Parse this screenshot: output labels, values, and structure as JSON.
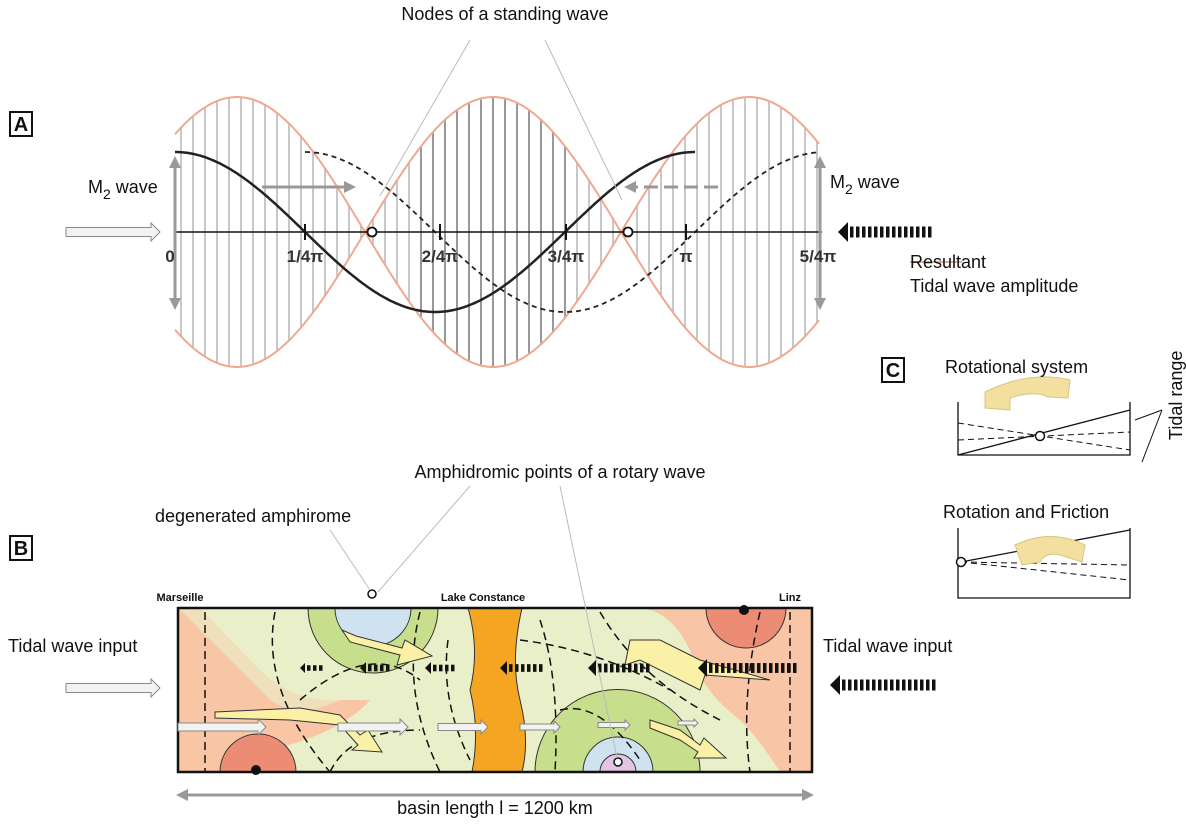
{
  "panels": {
    "a": "A",
    "b": "B",
    "c": "C"
  },
  "panel_a": {
    "title": "Nodes of a standing wave",
    "wave_left": {
      "base": "M",
      "sub": "2",
      "rest": "wave"
    },
    "wave_right": {
      "base": "M",
      "sub": "2",
      "rest": "wave"
    },
    "axis_labels": [
      "0",
      "1/4π",
      "2/4π",
      "3/4π",
      "π",
      "5/4π"
    ],
    "legend": [
      "Resultant",
      "Tidal wave amplitude"
    ]
  },
  "panel_c": {
    "rotational": "Rotational system",
    "tidal_range": "Tidal range",
    "friction": "Rotation and Friction"
  },
  "panel_b": {
    "amphidromic": "Amphidromic points of a rotary wave",
    "degenerated": "degenerated amphirome",
    "places": [
      "Marseille",
      "Lake Constance",
      "Linz"
    ],
    "input_left": "Tidal wave input",
    "input_right": "Tidal wave input",
    "basin_length": "basin length l = 1200 km"
  }
}
